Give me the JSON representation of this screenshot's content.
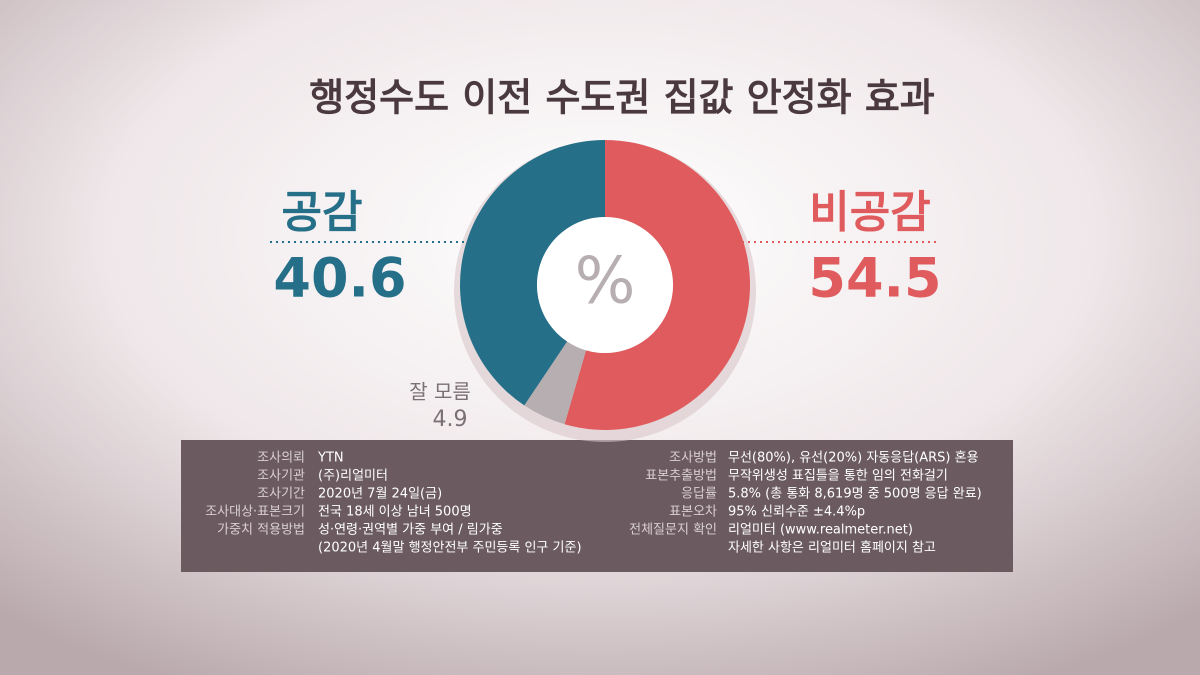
{
  "chart_data": {
    "type": "pie",
    "title": "행정수도 이전 수도권 집값 안정화 효과",
    "center_label": "%",
    "categories": [
      "비공감",
      "잘 모름",
      "공감"
    ],
    "values": [
      54.5,
      4.9,
      40.6
    ],
    "colors": [
      "#e05b5d",
      "#b7aeb1",
      "#256f88"
    ]
  },
  "info": {
    "left": {
      "items": [
        {
          "label": "조사의뢰",
          "value": "YTN"
        },
        {
          "label": "조사기관",
          "value": "(주)리얼미터"
        },
        {
          "label": "조사기간",
          "value": "2020년 7월 24일(금)"
        },
        {
          "label": "조사대상·표본크기",
          "value": "전국 18세 이상 남녀 500명"
        },
        {
          "label": "가중치 적용방법",
          "value": "성·연령·권역별 가중 부여 / 림가중"
        }
      ],
      "note": "(2020년 4월말 행정안전부 주민등록 인구 기준)"
    },
    "right": {
      "items": [
        {
          "label": "조사방법",
          "value": "무선(80%), 유선(20%) 자동응답(ARS) 혼용"
        },
        {
          "label": "표본추출방법",
          "value": "무작위생성 표집틀을 통한 임의 전화걸기"
        },
        {
          "label": "응답률",
          "value": "5.8% (총 통화 8,619명 중 500명 응답 완료)"
        },
        {
          "label": "표본오차",
          "value": "95% 신뢰수준 ±4.4%p"
        },
        {
          "label": "전체질문지 확인",
          "value": "리얼미터 (www.realmeter.net)"
        }
      ],
      "note": "자세한 사항은 리얼미터 홈페이지 참고"
    }
  }
}
